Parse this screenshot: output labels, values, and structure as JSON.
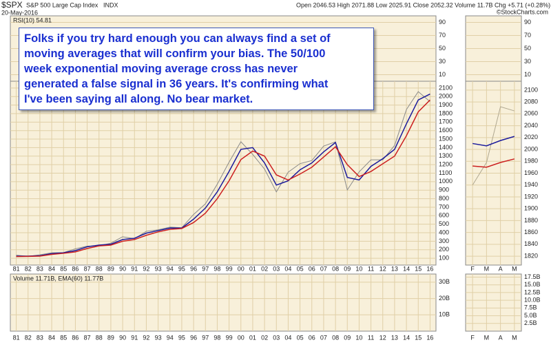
{
  "header": {
    "symbol": "$SPX",
    "name": "S&P 500 Large Cap Index",
    "exchange": "INDX",
    "date": "20-May-2016",
    "quote": "Open 2046.53  High 2071.88  Low 2025.91  Close 2052.32  Volume 11.7B  Chg +5.71 (+0.28%)",
    "source": "©StockCharts.com"
  },
  "annotation": {
    "lines": [
      "Folks if you try hard enough you can always find a set of",
      "moving averages that will confirm your bias. The 50/100",
      "week exponential moving average cross has never",
      "generated a false signal in 36 years. It's confirming what",
      "I've been saying all along. No bear market."
    ]
  },
  "chart_data": [
    {
      "type": "line",
      "title": "RSI(10) 54.81",
      "ylim": [
        0,
        100
      ],
      "yticks": [
        10,
        30,
        50,
        70,
        90
      ],
      "grid": true
    },
    {
      "type": "line",
      "categories": [
        "81",
        "82",
        "83",
        "84",
        "85",
        "86",
        "87",
        "88",
        "89",
        "90",
        "91",
        "92",
        "93",
        "94",
        "95",
        "96",
        "97",
        "98",
        "99",
        "00",
        "01",
        "02",
        "03",
        "04",
        "05",
        "06",
        "07",
        "08",
        "09",
        "10",
        "11",
        "12",
        "13",
        "14",
        "15",
        "16"
      ],
      "ylim": [
        20,
        2180
      ],
      "yticks": [
        100,
        200,
        300,
        400,
        500,
        600,
        700,
        800,
        900,
        1000,
        1100,
        1200,
        1300,
        1400,
        1500,
        1600,
        1700,
        1800,
        1900,
        2000,
        2100
      ],
      "grid": true,
      "series": [
        {
          "color": "#8a8a8a",
          "values": [
            136,
            122,
            140,
            165,
            167,
            211,
            242,
            247,
            277,
            353,
            330,
            417,
            435,
            466,
            459,
            615,
            740,
            970,
            1229,
            1469,
            1320,
            1148,
            880,
            1111,
            1212,
            1248,
            1418,
            1468,
            903,
            1115,
            1257,
            1257,
            1426,
            1848,
            2058,
            1940
          ]
        },
        {
          "color": "#1a1a9c",
          "values": [
            125,
            125,
            130,
            155,
            165,
            190,
            235,
            255,
            265,
            320,
            335,
            395,
            425,
            455,
            455,
            560,
            690,
            880,
            1120,
            1380,
            1400,
            1220,
            960,
            1010,
            1140,
            1220,
            1350,
            1460,
            1050,
            1020,
            1180,
            1270,
            1380,
            1680,
            1960,
            2030
          ]
        },
        {
          "color": "#cc1f1f",
          "values": [
            120,
            122,
            125,
            145,
            158,
            175,
            215,
            245,
            255,
            300,
            320,
            370,
            410,
            440,
            450,
            520,
            630,
            800,
            1010,
            1260,
            1360,
            1300,
            1080,
            1020,
            1090,
            1170,
            1290,
            1410,
            1200,
            1060,
            1120,
            1210,
            1300,
            1540,
            1820,
            1960
          ]
        }
      ]
    },
    {
      "type": "line",
      "title": "Volume 11.71B, EMA(60) 11.77B",
      "ylim": [
        0,
        35
      ],
      "yticks": [
        {
          "value": 10,
          "label": "10B"
        },
        {
          "value": 20,
          "label": "20B"
        },
        {
          "value": 30,
          "label": "30B"
        }
      ],
      "grid": true
    },
    {
      "type": "line",
      "ylim": [
        0,
        100
      ],
      "yticks": [
        10,
        30,
        50,
        70,
        90
      ],
      "grid": true
    },
    {
      "type": "line",
      "categories": [
        "F",
        "M",
        "A",
        "M"
      ],
      "ylim": [
        1805,
        2115
      ],
      "yticks": [
        1820,
        1840,
        1860,
        1880,
        1900,
        1920,
        1940,
        1960,
        1980,
        2000,
        2020,
        2040,
        2060,
        2080,
        2100
      ],
      "grid": true,
      "series": [
        {
          "color": "#b0a890",
          "values": [
            1940,
            1978,
            2072,
            2065
          ]
        },
        {
          "color": "#1a1a9c",
          "values": [
            2010,
            2006,
            2015,
            2022
          ]
        },
        {
          "color": "#cc1f1f",
          "values": [
            1972,
            1970,
            1978,
            1984
          ]
        }
      ]
    },
    {
      "type": "line",
      "ylim": [
        0,
        18.5
      ],
      "yticks": [
        {
          "value": 2.5,
          "label": "2.5B"
        },
        {
          "value": 5,
          "label": "5.0B"
        },
        {
          "value": 7.5,
          "label": "7.5B"
        },
        {
          "value": 10,
          "label": "10.0B"
        },
        {
          "value": 12.5,
          "label": "12.5B"
        },
        {
          "value": 15,
          "label": "15.0B"
        },
        {
          "value": 17.5,
          "label": "17.5B"
        }
      ],
      "grid": true
    }
  ]
}
